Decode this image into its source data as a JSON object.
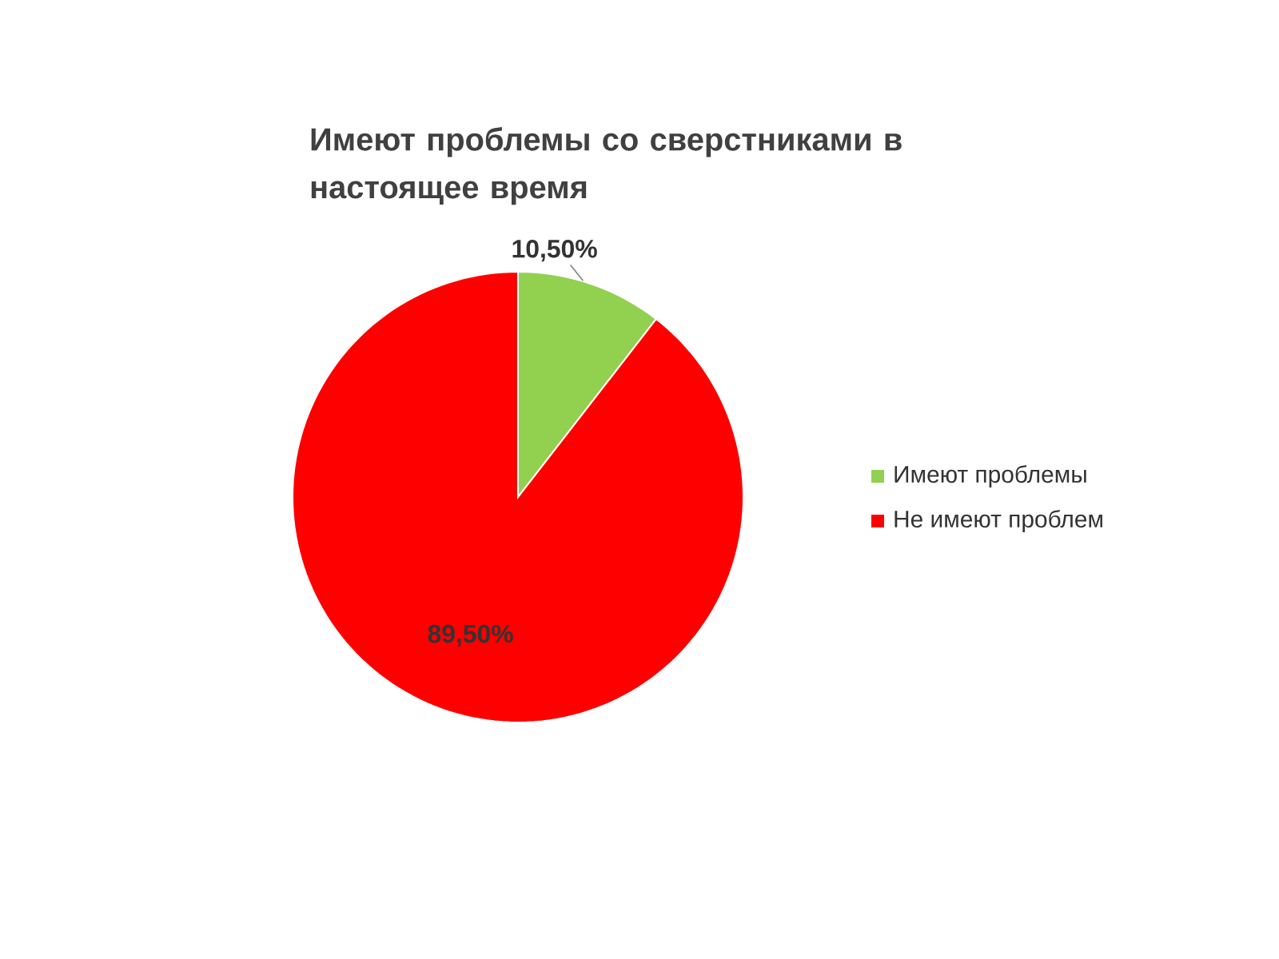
{
  "chart_data": {
    "type": "pie",
    "title": "Имеют проблемы со сверстниками в настоящее время",
    "categories": [
      "Имеют проблемы",
      "Не имеют проблем"
    ],
    "values": [
      10.5,
      89.5
    ],
    "value_labels": [
      "10,50%",
      "89,50%"
    ],
    "colors": [
      "#92d050",
      "#ff0000"
    ],
    "legend": "right"
  }
}
